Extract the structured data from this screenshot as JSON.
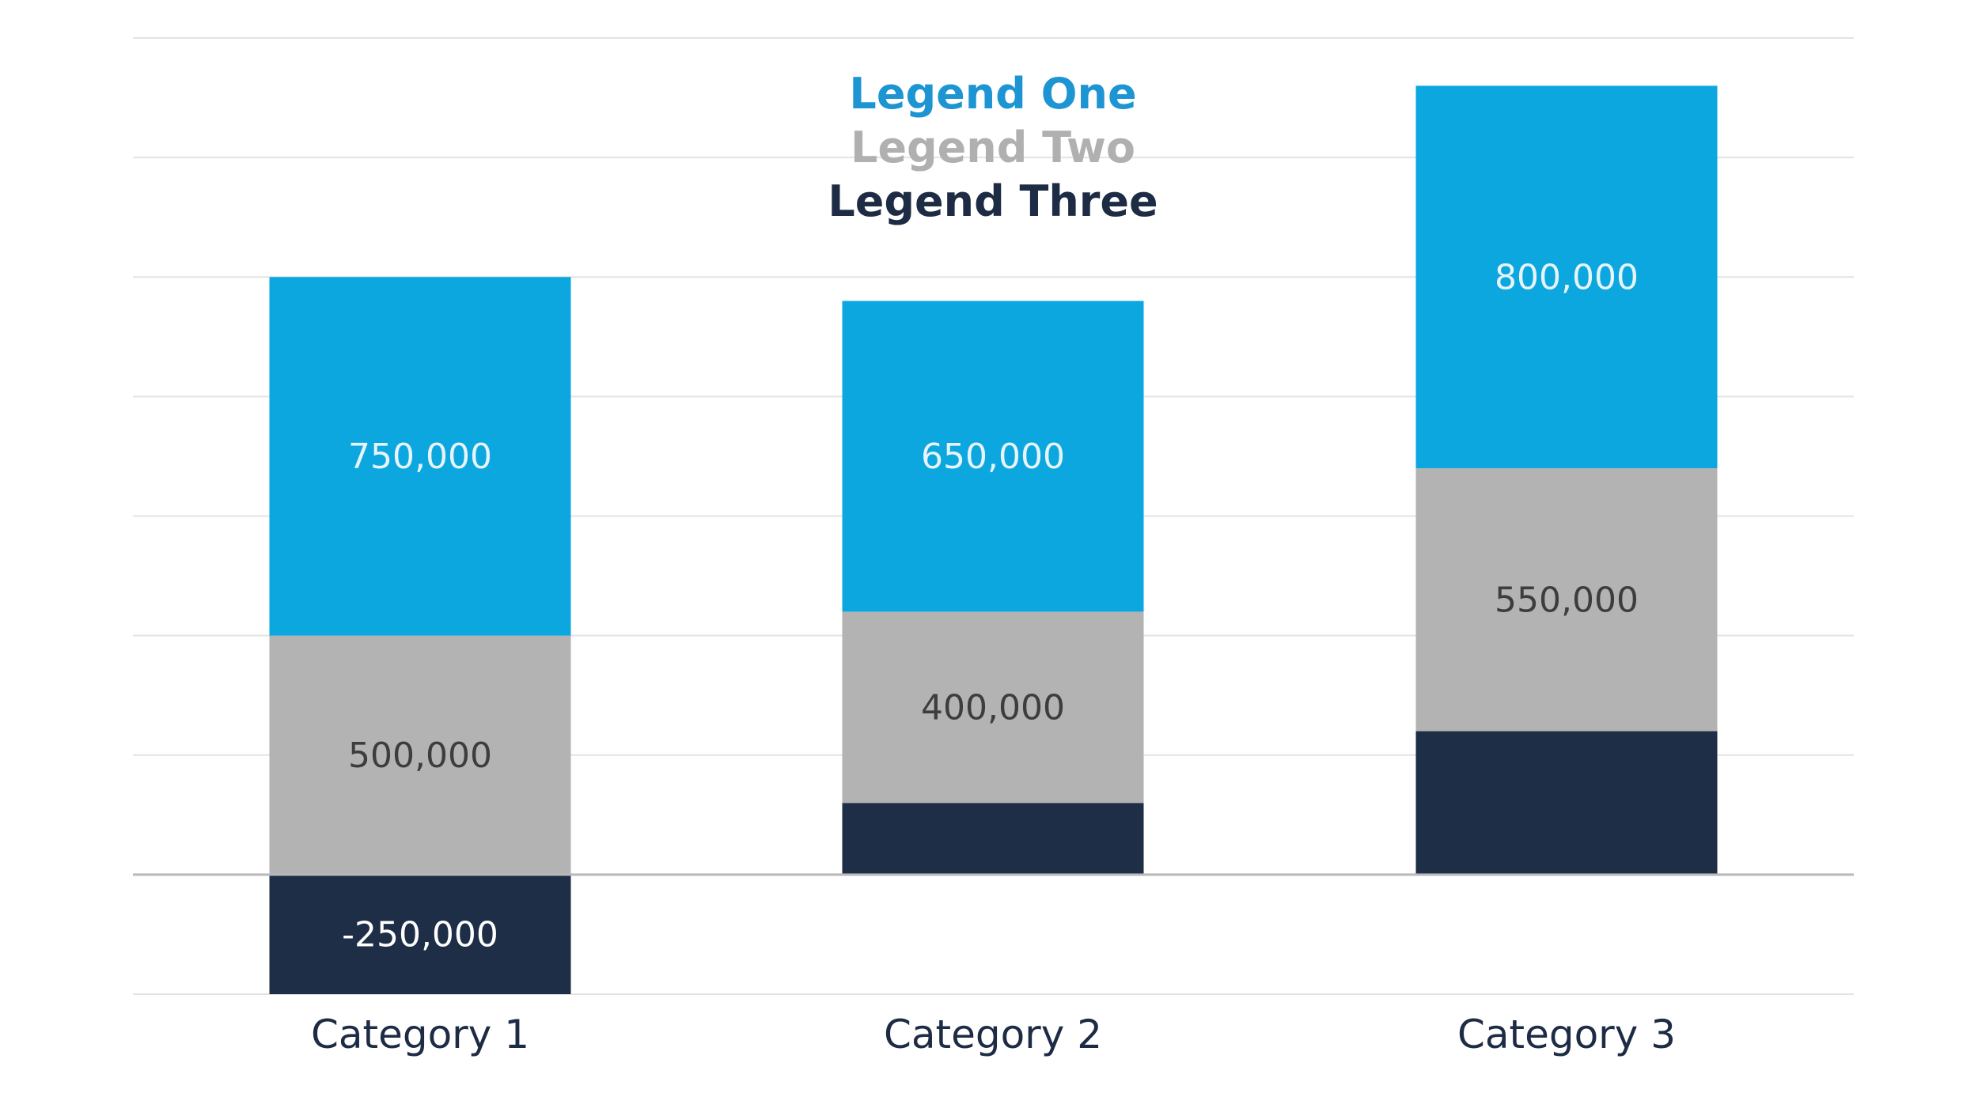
{
  "chart_data": {
    "type": "bar",
    "stacked": true,
    "categories": [
      "Category 1",
      "Category 2",
      "Category 3"
    ],
    "series": [
      {
        "name": "Legend One",
        "color": "#0da7e0",
        "values": [
          750000,
          650000,
          800000
        ],
        "labels": [
          "750,000",
          "650,000",
          "800,000"
        ],
        "label_color": "#e6f4fb"
      },
      {
        "name": "Legend Two",
        "color": "#b3b3b3",
        "values": [
          500000,
          400000,
          550000
        ],
        "labels": [
          "500,000",
          "400,000",
          "550,000"
        ],
        "label_color": "#3d3d3d"
      },
      {
        "name": "Legend Three",
        "color": "#1d2e46",
        "values": [
          -250000,
          150000,
          300000
        ],
        "labels": [
          "-250,000",
          "",
          ""
        ],
        "label_color": "#ffffff"
      }
    ],
    "legend_colors": [
      "#1e95d3",
      "#b0b0b0",
      "#1d2c44"
    ],
    "title": "",
    "xlabel": "",
    "ylabel": "",
    "ylim": [
      -250000,
      1750000
    ],
    "grid": true,
    "legend": "top-center"
  }
}
